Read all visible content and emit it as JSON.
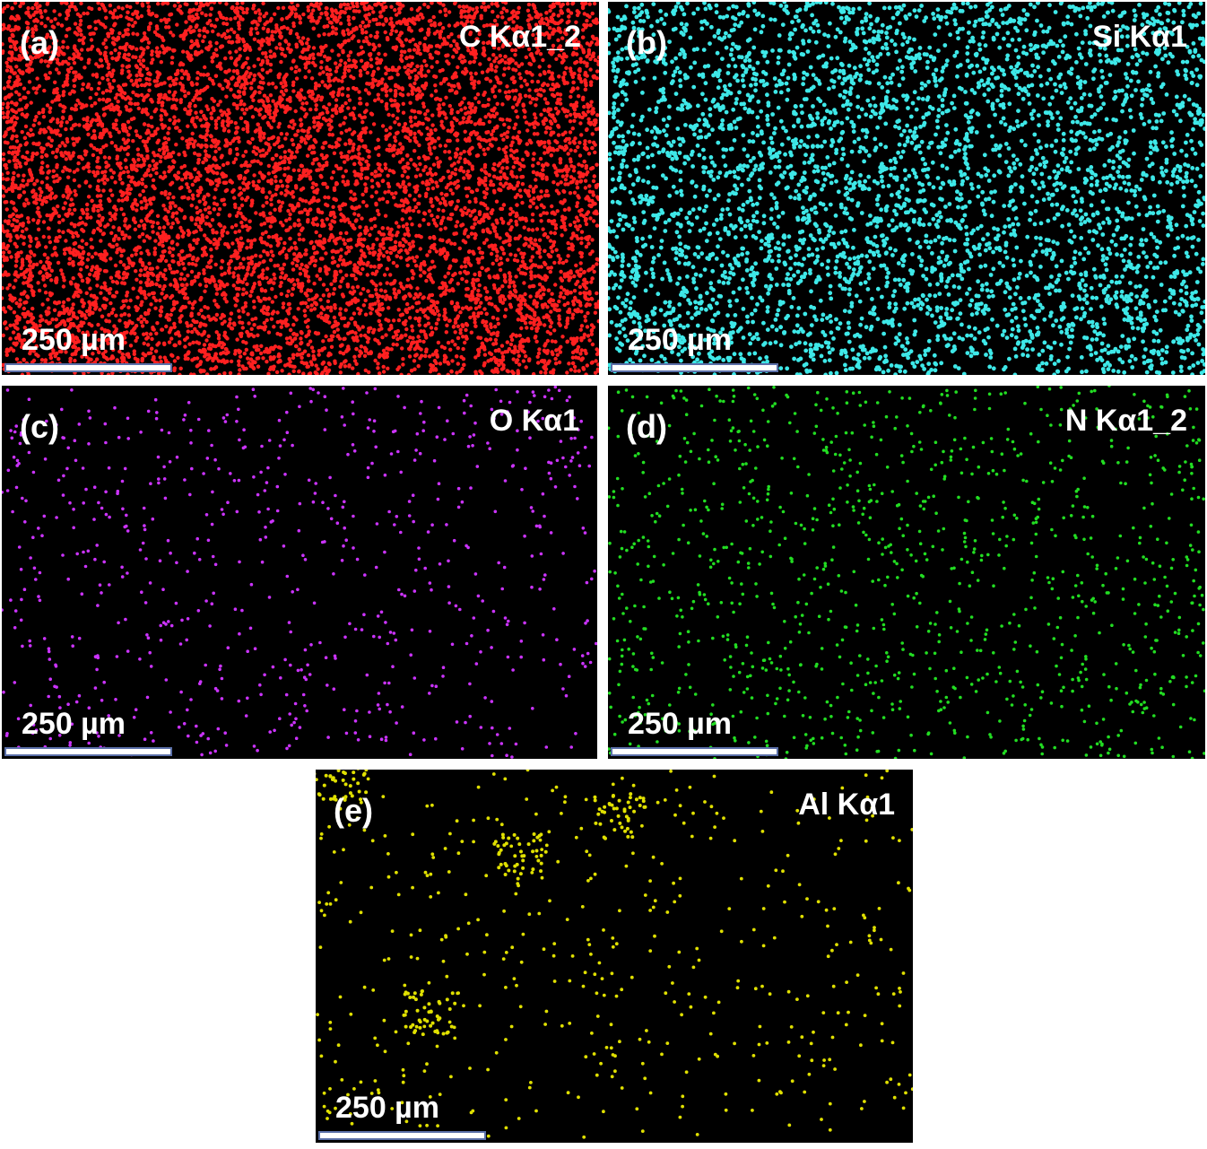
{
  "panels": [
    {
      "label": "(a)",
      "element": "C Kα1_2",
      "scale_bar": "250 µm"
    },
    {
      "label": "(b)",
      "element": "Si Kα1",
      "scale_bar": "250 µm"
    },
    {
      "label": "(c)",
      "element": "O Kα1",
      "scale_bar": "250 µm"
    },
    {
      "label": "(d)",
      "element": "N Kα1_2",
      "scale_bar": "250 µm"
    },
    {
      "label": "(e)",
      "element": "Al Kα1",
      "scale_bar": "250 µm"
    }
  ]
}
